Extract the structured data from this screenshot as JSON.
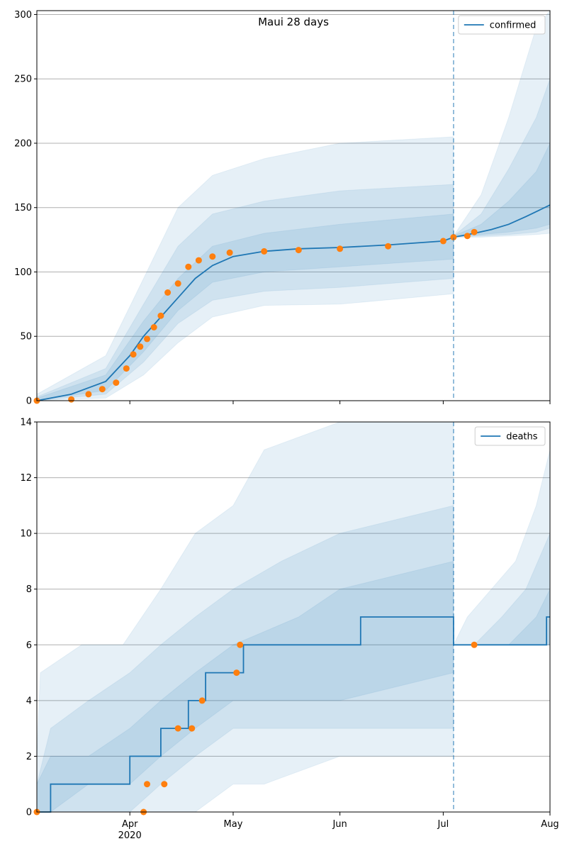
{
  "chart_data": [
    {
      "type": "line",
      "title": "Maui 28 days",
      "xlabel": "",
      "ylabel": "",
      "x_range": [
        "2020-03-05",
        "2020-08-01"
      ],
      "ylim": [
        0,
        303
      ],
      "yticks": [
        0,
        50,
        100,
        150,
        200,
        250,
        300
      ],
      "xticks": [
        {
          "date": "2020-04-01",
          "label": "Apr",
          "sublabel": "2020"
        },
        {
          "date": "2020-05-01",
          "label": "May",
          "sublabel": ""
        },
        {
          "date": "2020-06-01",
          "label": "Jun",
          "sublabel": ""
        },
        {
          "date": "2020-07-01",
          "label": "Jul",
          "sublabel": ""
        },
        {
          "date": "2020-08-01",
          "label": "Aug",
          "sublabel": ""
        }
      ],
      "grid": "horizontal",
      "legend": "top-right",
      "forecast_start": "2020-07-04",
      "colors": {
        "line": "#1f77b4",
        "band": "#1f77b4",
        "observed": "#ff7f0e",
        "grid": "#b0b0b0"
      },
      "series": [
        {
          "name": "confirmed",
          "kind": "median",
          "x": [
            "2020-03-05",
            "2020-03-15",
            "2020-03-25",
            "2020-04-01",
            "2020-04-05",
            "2020-04-10",
            "2020-04-15",
            "2020-04-20",
            "2020-04-25",
            "2020-05-01",
            "2020-05-10",
            "2020-05-20",
            "2020-06-01",
            "2020-06-15",
            "2020-07-01",
            "2020-07-04",
            "2020-07-10",
            "2020-07-15",
            "2020-07-20",
            "2020-07-25",
            "2020-08-01"
          ],
          "y": [
            0,
            5,
            15,
            35,
            50,
            65,
            80,
            95,
            105,
            112,
            116,
            118,
            119,
            121,
            124,
            127,
            130,
            133,
            137,
            143,
            152
          ]
        },
        {
          "name": "",
          "kind": "observed",
          "x": [
            "2020-03-05",
            "2020-03-15",
            "2020-03-20",
            "2020-03-24",
            "2020-03-28",
            "2020-03-31",
            "2020-04-02",
            "2020-04-04",
            "2020-04-06",
            "2020-04-08",
            "2020-04-10",
            "2020-04-12",
            "2020-04-15",
            "2020-04-18",
            "2020-04-21",
            "2020-04-25",
            "2020-04-30",
            "2020-05-10",
            "2020-05-20",
            "2020-06-01",
            "2020-06-15",
            "2020-07-01",
            "2020-07-04",
            "2020-07-08",
            "2020-07-10"
          ],
          "y": [
            0,
            1,
            5,
            9,
            14,
            25,
            36,
            42,
            48,
            57,
            66,
            84,
            91,
            104,
            109,
            112,
            115,
            116,
            117,
            118,
            120,
            124,
            127,
            128,
            131
          ]
        }
      ],
      "bands": [
        {
          "x": [
            "2020-03-05",
            "2020-03-25",
            "2020-04-05",
            "2020-04-15",
            "2020-04-25",
            "2020-05-10",
            "2020-06-01",
            "2020-07-04"
          ],
          "lower": [
            0,
            2,
            20,
            45,
            65,
            74,
            75,
            83
          ],
          "upper": [
            5,
            35,
            95,
            150,
            175,
            188,
            200,
            205
          ]
        },
        {
          "x": [
            "2020-03-05",
            "2020-03-25",
            "2020-04-05",
            "2020-04-15",
            "2020-04-25",
            "2020-05-10",
            "2020-06-01",
            "2020-07-04"
          ],
          "lower": [
            0,
            5,
            30,
            60,
            78,
            85,
            88,
            95
          ],
          "upper": [
            3,
            25,
            75,
            120,
            145,
            155,
            163,
            168
          ]
        },
        {
          "x": [
            "2020-03-05",
            "2020-03-25",
            "2020-04-05",
            "2020-04-15",
            "2020-04-25",
            "2020-05-10",
            "2020-06-01",
            "2020-07-04"
          ],
          "lower": [
            0,
            8,
            38,
            70,
            92,
            100,
            104,
            110
          ],
          "upper": [
            2,
            20,
            62,
            95,
            120,
            130,
            137,
            145
          ]
        },
        {
          "x": [
            "2020-07-04",
            "2020-07-12",
            "2020-07-20",
            "2020-07-28",
            "2020-08-01"
          ],
          "lower": [
            127,
            127,
            128,
            129,
            130
          ],
          "upper": [
            128,
            160,
            220,
            290,
            303
          ]
        },
        {
          "x": [
            "2020-07-04",
            "2020-07-12",
            "2020-07-20",
            "2020-07-28",
            "2020-08-01"
          ],
          "lower": [
            127,
            128,
            129,
            131,
            134
          ],
          "upper": [
            128,
            145,
            180,
            220,
            250
          ]
        },
        {
          "x": [
            "2020-07-04",
            "2020-07-12",
            "2020-07-20",
            "2020-07-28",
            "2020-08-01"
          ],
          "lower": [
            127,
            129,
            131,
            134,
            137
          ],
          "upper": [
            128,
            137,
            155,
            178,
            200
          ]
        }
      ]
    },
    {
      "type": "line",
      "title": "",
      "xlabel": "",
      "ylabel": "",
      "x_range": [
        "2020-03-05",
        "2020-08-01"
      ],
      "ylim": [
        0,
        14
      ],
      "yticks": [
        0,
        2,
        4,
        6,
        8,
        10,
        12,
        14
      ],
      "xticks": [
        {
          "date": "2020-04-01",
          "label": "Apr",
          "sublabel": "2020"
        },
        {
          "date": "2020-05-01",
          "label": "May",
          "sublabel": ""
        },
        {
          "date": "2020-06-01",
          "label": "Jun",
          "sublabel": ""
        },
        {
          "date": "2020-07-01",
          "label": "Jul",
          "sublabel": ""
        },
        {
          "date": "2020-08-01",
          "label": "Aug",
          "sublabel": ""
        }
      ],
      "grid": "horizontal",
      "legend": "top-right",
      "forecast_start": "2020-07-04",
      "colors": {
        "line": "#1f77b4",
        "band": "#1f77b4",
        "observed": "#ff7f0e",
        "grid": "#b0b0b0"
      },
      "series": [
        {
          "name": "deaths",
          "kind": "median-step",
          "x": [
            "2020-03-05",
            "2020-03-09",
            "2020-04-01",
            "2020-04-10",
            "2020-04-18",
            "2020-04-23",
            "2020-05-04",
            "2020-06-07",
            "2020-07-04",
            "2020-07-10",
            "2020-07-31",
            "2020-08-01"
          ],
          "y": [
            0,
            1,
            2,
            3,
            4,
            5,
            6,
            7,
            6,
            6,
            7,
            7
          ]
        },
        {
          "name": "",
          "kind": "observed",
          "x": [
            "2020-03-05",
            "2020-04-05",
            "2020-04-06",
            "2020-04-11",
            "2020-04-15",
            "2020-04-19",
            "2020-04-22",
            "2020-05-02",
            "2020-05-03",
            "2020-07-10"
          ],
          "y": [
            0,
            0,
            1,
            1,
            3,
            3,
            4,
            5,
            6,
            6
          ]
        }
      ],
      "bands": [
        {
          "x": [
            "2020-03-05",
            "2020-03-06",
            "2020-03-18",
            "2020-03-30",
            "2020-04-10",
            "2020-04-20",
            "2020-05-01",
            "2020-05-10",
            "2020-06-01",
            "2020-07-04"
          ],
          "lower": [
            0,
            0,
            0,
            0,
            0,
            0,
            1,
            1,
            2,
            2
          ],
          "upper": [
            2,
            5,
            6,
            6,
            8,
            10,
            11,
            13,
            14,
            14
          ]
        },
        {
          "x": [
            "2020-03-05",
            "2020-03-09",
            "2020-03-20",
            "2020-04-01",
            "2020-04-10",
            "2020-04-20",
            "2020-05-01",
            "2020-05-15",
            "2020-06-01",
            "2020-07-04"
          ],
          "lower": [
            0,
            0,
            0,
            0,
            1,
            2,
            3,
            3,
            3,
            3
          ],
          "upper": [
            1,
            3,
            4,
            5,
            6,
            7,
            8,
            9,
            10,
            11
          ]
        },
        {
          "x": [
            "2020-03-05",
            "2020-03-09",
            "2020-03-20",
            "2020-04-01",
            "2020-04-10",
            "2020-04-20",
            "2020-05-01",
            "2020-05-20",
            "2020-06-01",
            "2020-07-04"
          ],
          "lower": [
            0,
            0,
            1,
            1,
            2,
            3,
            4,
            4,
            4,
            5
          ],
          "upper": [
            1,
            2,
            2,
            3,
            4,
            5,
            6,
            7,
            8,
            9
          ]
        },
        {
          "x": [
            "2020-07-04",
            "2020-07-08",
            "2020-07-15",
            "2020-07-22",
            "2020-07-28",
            "2020-08-01"
          ],
          "lower": [
            6,
            6,
            6,
            6,
            6,
            6
          ],
          "upper": [
            6,
            7,
            8,
            9,
            11,
            13
          ]
        },
        {
          "x": [
            "2020-07-04",
            "2020-07-10",
            "2020-07-18",
            "2020-07-25",
            "2020-08-01"
          ],
          "lower": [
            6,
            6,
            6,
            6,
            6
          ],
          "upper": [
            6,
            6,
            7,
            8,
            10
          ]
        },
        {
          "x": [
            "2020-07-04",
            "2020-07-20",
            "2020-07-28",
            "2020-08-01"
          ],
          "lower": [
            6,
            6,
            6,
            6
          ],
          "upper": [
            6,
            6,
            7,
            8
          ]
        }
      ]
    }
  ]
}
